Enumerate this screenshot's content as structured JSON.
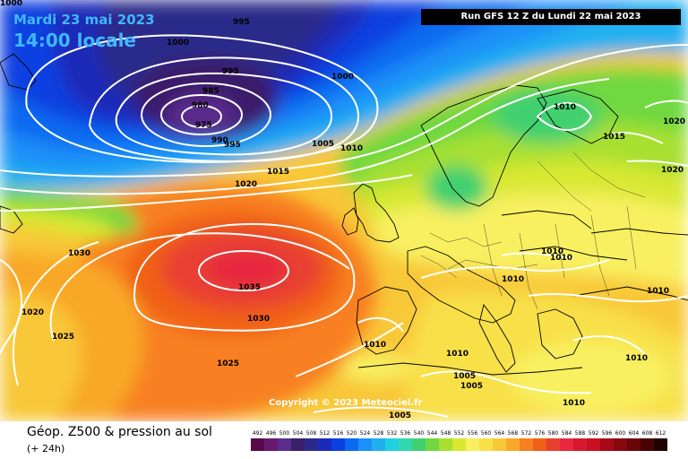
{
  "header": {
    "date": "Mardi 23 mai 2023",
    "time": "14:00 locale",
    "run": "Run GFS 12 Z du Lundi 22 mai 2023"
  },
  "copyright": "Copyright © 2023 Meteociel.fr",
  "footer": {
    "title": "Géop. Z500 & pression au sol",
    "subtitle": "(+ 24h)"
  },
  "legend": {
    "values": [
      "492",
      "496",
      "500",
      "504",
      "508",
      "512",
      "516",
      "520",
      "524",
      "528",
      "532",
      "536",
      "540",
      "544",
      "548",
      "552",
      "556",
      "560",
      "564",
      "568",
      "572",
      "576",
      "580",
      "584",
      "588",
      "592",
      "596",
      "600",
      "604",
      "608",
      "612"
    ],
    "colors": [
      "#5a0a4a",
      "#6a1a6e",
      "#5a2c8c",
      "#3a1f6a",
      "#2a2a8a",
      "#1c2ab8",
      "#0a40e0",
      "#0a6af0",
      "#1a90f8",
      "#20b0f0",
      "#20d0e0",
      "#30d8b0",
      "#40d070",
      "#70d840",
      "#a8e030",
      "#d8e830",
      "#f8f060",
      "#f8e048",
      "#f8c838",
      "#f8a828",
      "#f88020",
      "#f06018",
      "#e84030",
      "#e82840",
      "#d81830",
      "#c81020",
      "#a80818",
      "#880810",
      "#680608",
      "#480404",
      "#200202"
    ]
  },
  "isobars": {
    "lows": [
      "975",
      "980",
      "985",
      "990",
      "995",
      "1000"
    ],
    "labels": [
      "995",
      "995",
      "1000",
      "1000",
      "985",
      "980",
      "975",
      "990",
      "995",
      "1000",
      "1005",
      "1010",
      "1015",
      "1020",
      "1010",
      "1015",
      "1020",
      "1020",
      "1030",
      "1020",
      "1025",
      "1035",
      "1030",
      "1025",
      "1010",
      "1010",
      "1010",
      "1010",
      "1010",
      "1010",
      "1005",
      "1005",
      "1005",
      "1010",
      "1010"
    ]
  }
}
